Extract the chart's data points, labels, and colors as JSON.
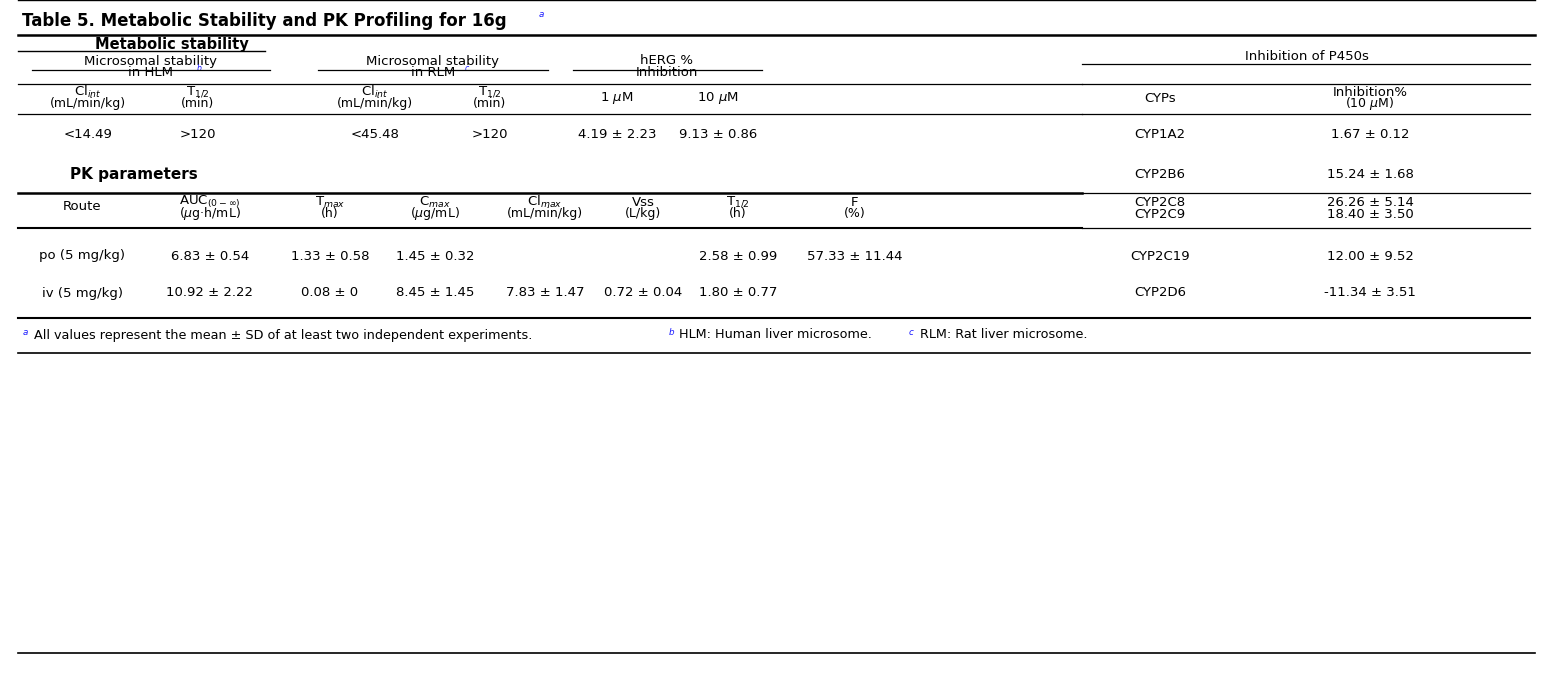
{
  "title": "Table 5. Metabolic Stability and PK Profiling for 16g",
  "bg_color": "#ffffff",
  "p450_rows": [
    {
      "cyp": "CYP1A2",
      "inh": "1.67 ± 0.12"
    },
    {
      "cyp": "CYP2B6",
      "inh": "15.24 ± 1.68"
    },
    {
      "cyp": "CYP2C8",
      "inh": "26.26 ± 5.14"
    },
    {
      "cyp": "CYP2C9",
      "inh": "18.40 ± 3.50"
    },
    {
      "cyp": "CYP2C19",
      "inh": "12.00 ± 9.52"
    },
    {
      "cyp": "CYP2D6",
      "inh": "-11.34 ± 3.51"
    }
  ],
  "met_row": {
    "cl_hlm": "<14.49",
    "t12_hlm": ">120",
    "cl_rlm": "<45.48",
    "t12_rlm": ">120",
    "herg1": "4.19 ± 2.23",
    "herg10": "9.13 ± 0.86"
  },
  "pk_rows": [
    {
      "route": "po (5 mg/kg)",
      "auc": "6.83 ± 0.54",
      "tmax": "1.33 ± 0.58",
      "cmax": "1.45 ± 0.32",
      "cl": "",
      "vss": "",
      "t12": "2.58 ± 0.99",
      "f": "57.33 ± 11.44"
    },
    {
      "route": "iv (5 mg/kg)",
      "auc": "10.92 ± 2.22",
      "tmax": "0.08 ± 0",
      "cmax": "8.45 ± 1.45",
      "cl": "7.83 ± 1.47",
      "vss": "0.72 ± 0.04",
      "t12": "1.80 ± 0.77",
      "f": ""
    }
  ],
  "footnote": "All values represent the mean ± SD of at least two independent experiments. HLM: Human liver microsome. RLM: Rat liver microsome."
}
